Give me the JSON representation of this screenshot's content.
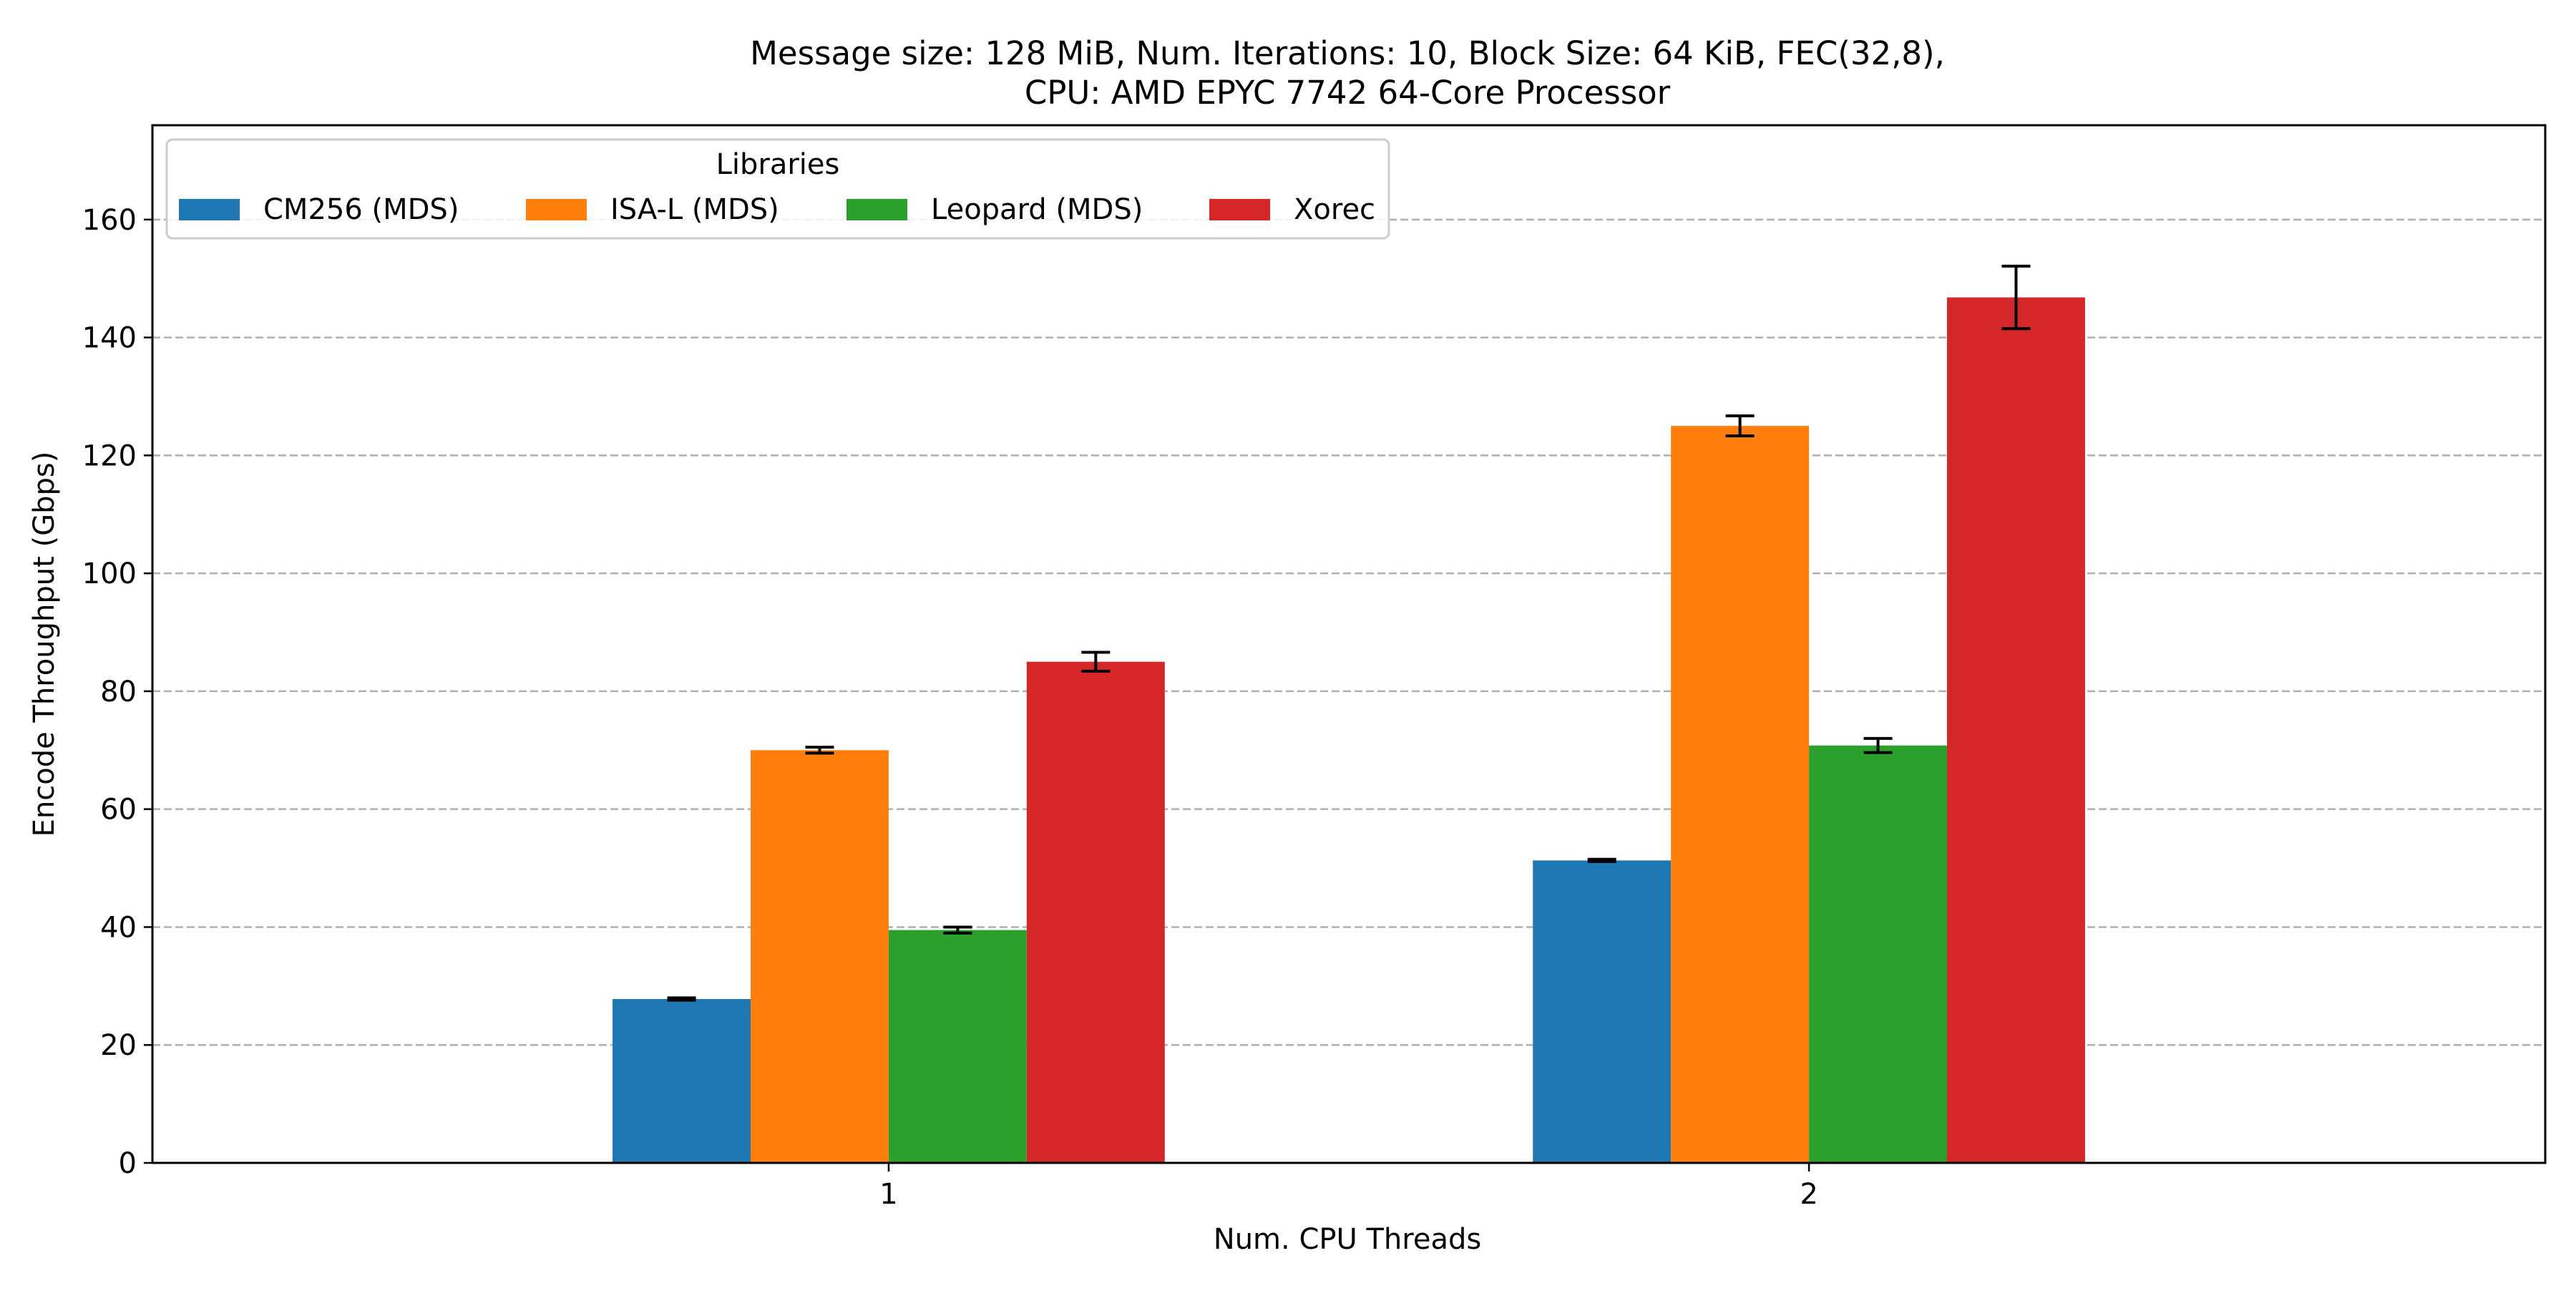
{
  "chart_data": {
    "type": "bar",
    "title": "Message size: 128 MiB, Num. Iterations: 10, Block Size: 64 KiB, FEC(32,8),",
    "subtitle": "CPU: AMD EPYC 7742 64-Core Processor",
    "xlabel": "Num. CPU Threads",
    "ylabel": "Encode Throughput (Gbps)",
    "categories": [
      "1",
      "2"
    ],
    "ylim": [
      0,
      176
    ],
    "yticks": [
      0,
      20,
      40,
      60,
      80,
      100,
      120,
      140,
      160
    ],
    "grid": "y, dashed",
    "legend": {
      "title": "Libraries",
      "placement": "top-left",
      "columns": 4
    },
    "series": [
      {
        "name": "CM256 (MDS)",
        "color": "#1f77b4",
        "values": [
          27.8,
          51.3
        ],
        "errors": [
          0.2,
          0.2
        ]
      },
      {
        "name": "ISA-L (MDS)",
        "color": "#ff7f0e",
        "values": [
          70.0,
          125.0
        ],
        "errors": [
          0.5,
          1.7
        ]
      },
      {
        "name": "Leopard (MDS)",
        "color": "#2ca02c",
        "values": [
          39.5,
          70.8
        ],
        "errors": [
          0.5,
          1.2
        ]
      },
      {
        "name": "Xorec",
        "color": "#d62728",
        "values": [
          85.0,
          146.8
        ],
        "errors": [
          1.6,
          5.3
        ]
      }
    ]
  }
}
